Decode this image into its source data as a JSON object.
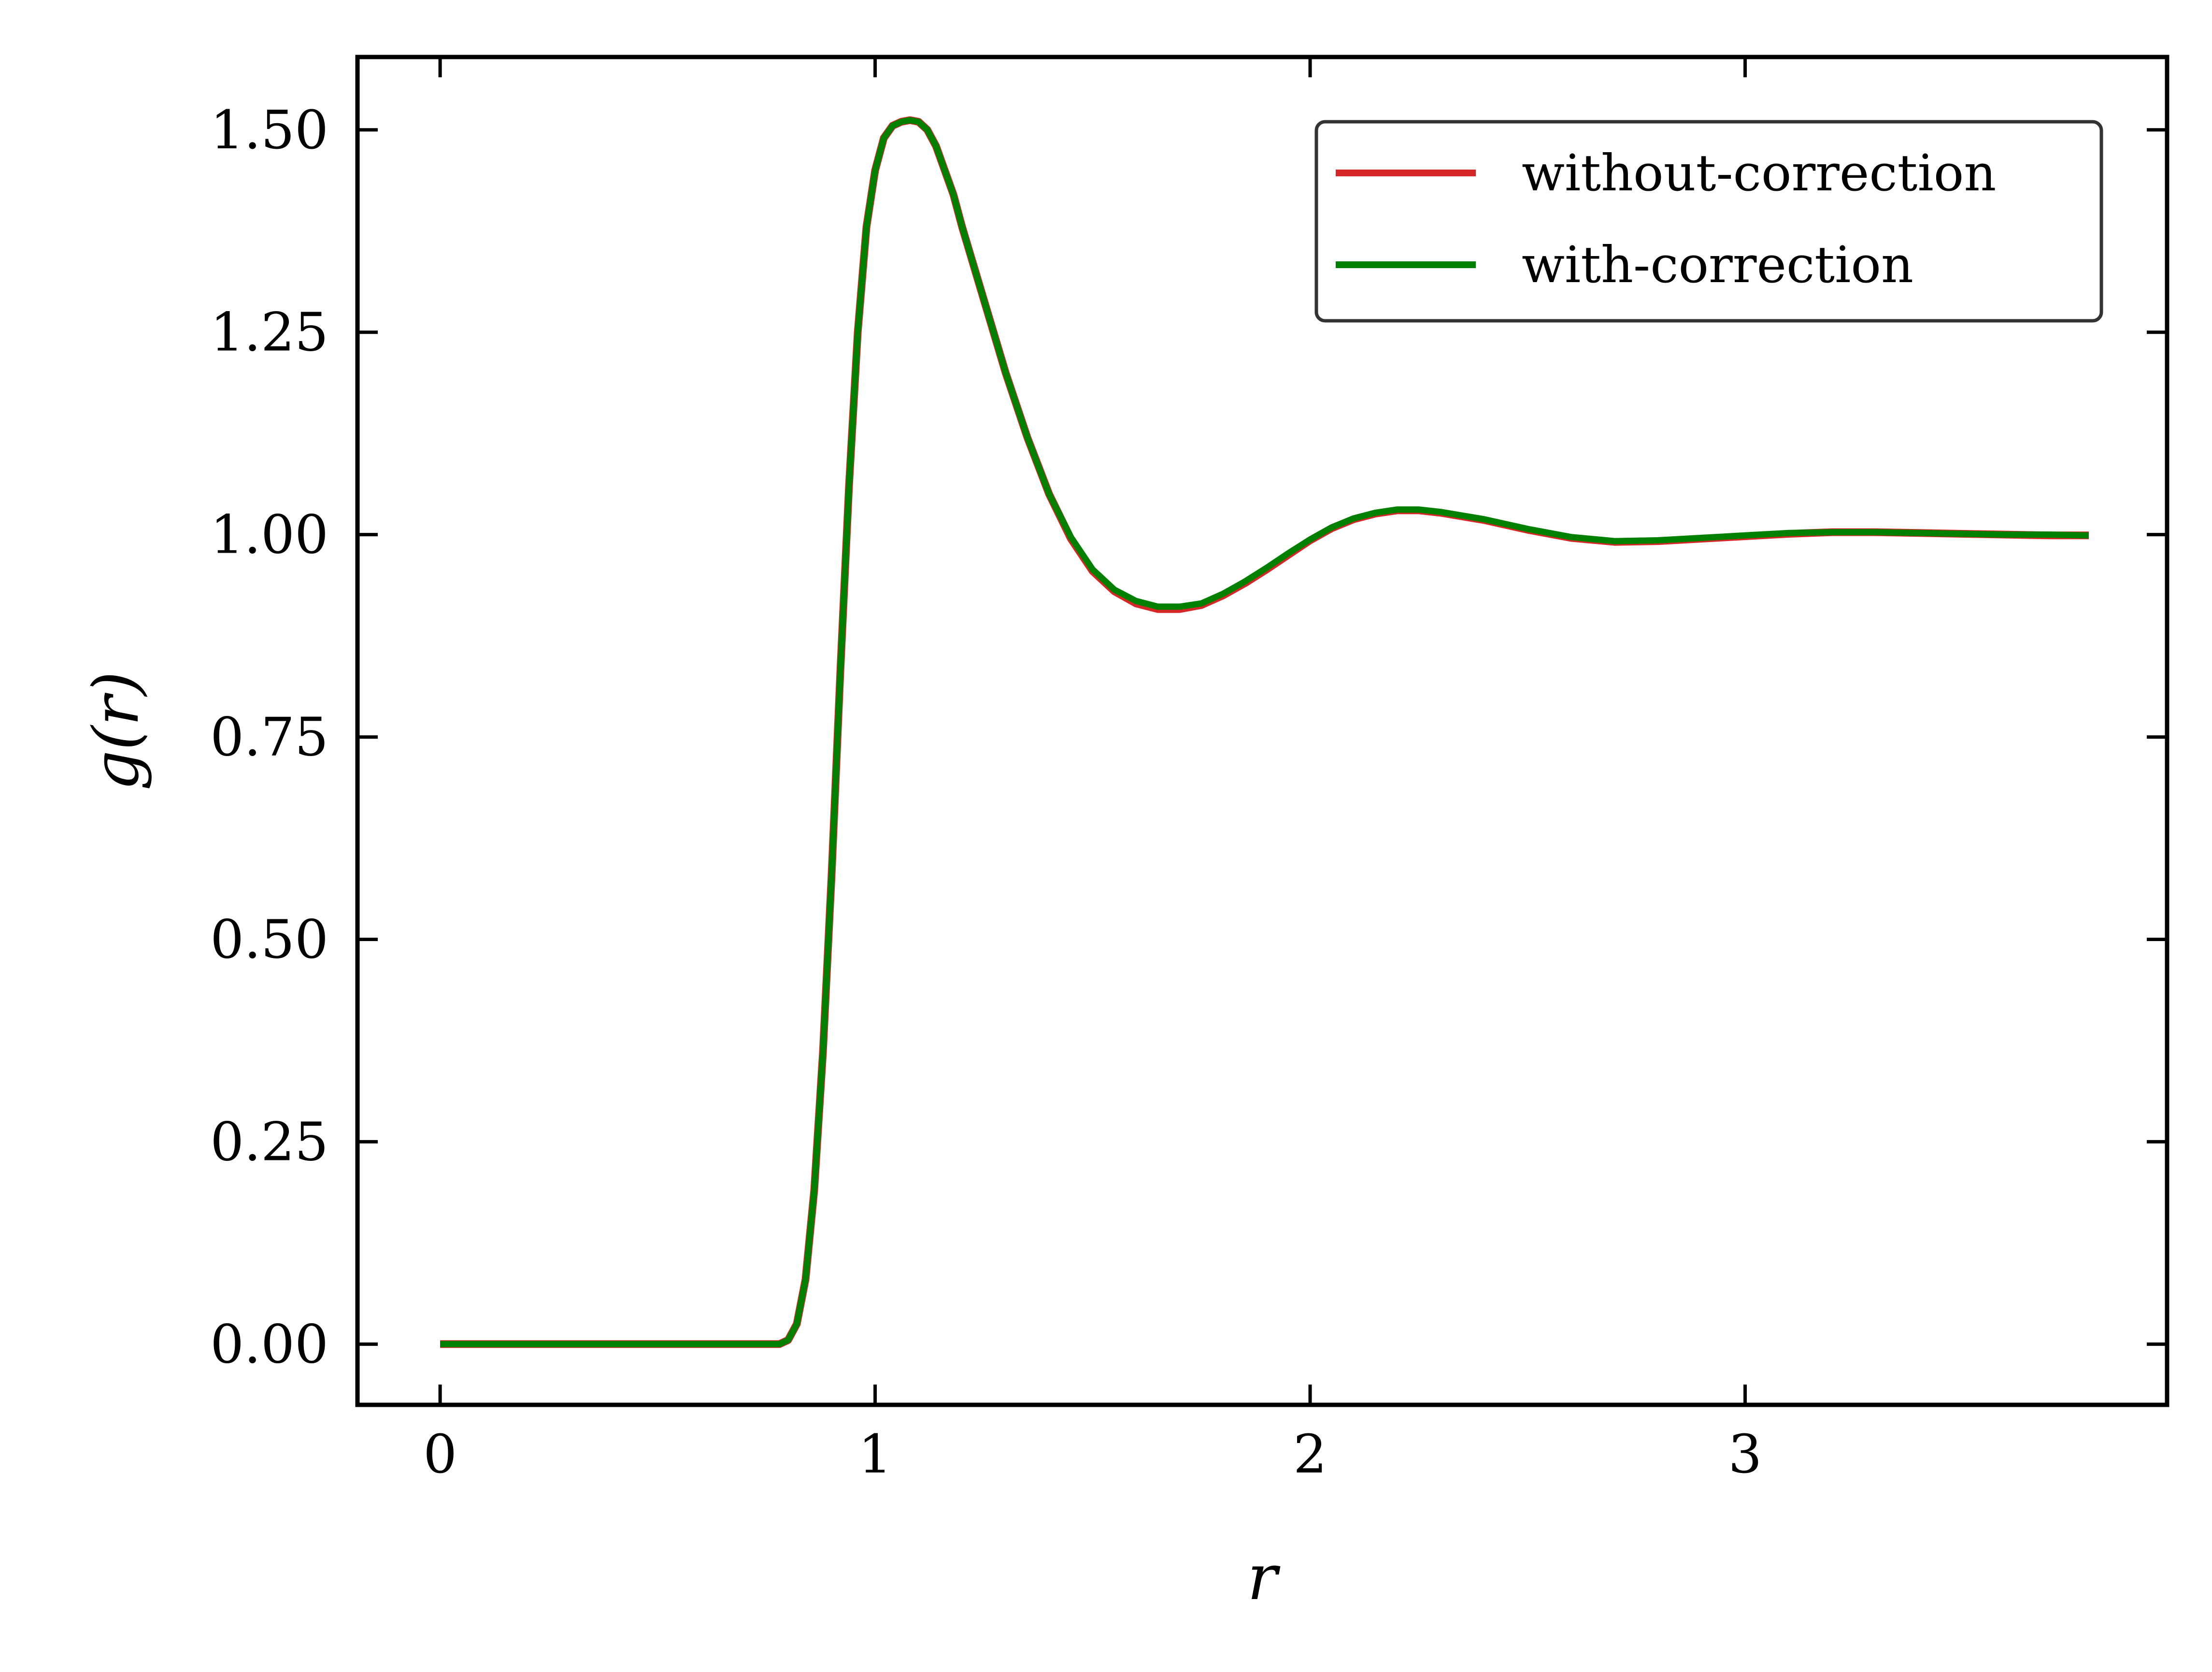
{
  "chart_data": {
    "type": "line",
    "xlabel": "r",
    "ylabel": "g(r)",
    "xlim": [
      -0.19,
      3.97
    ],
    "ylim": [
      -0.075,
      1.59
    ],
    "xticks": [
      0,
      1,
      2,
      3
    ],
    "xtick_labels": [
      "0",
      "1",
      "2",
      "3"
    ],
    "yticks": [
      0.0,
      0.25,
      0.5,
      0.75,
      1.0,
      1.25,
      1.5
    ],
    "ytick_labels": [
      "0.00",
      "0.25",
      "0.50",
      "0.75",
      "1.00",
      "1.25",
      "1.50"
    ],
    "grid": false,
    "legend_position": "top-right",
    "x": [
      0.0,
      0.1,
      0.2,
      0.3,
      0.4,
      0.5,
      0.6,
      0.7,
      0.75,
      0.78,
      0.8,
      0.82,
      0.84,
      0.86,
      0.88,
      0.9,
      0.92,
      0.94,
      0.96,
      0.98,
      1.0,
      1.02,
      1.04,
      1.06,
      1.08,
      1.1,
      1.12,
      1.14,
      1.16,
      1.18,
      1.2,
      1.25,
      1.3,
      1.35,
      1.4,
      1.45,
      1.5,
      1.55,
      1.6,
      1.65,
      1.7,
      1.75,
      1.8,
      1.85,
      1.9,
      1.95,
      2.0,
      2.05,
      2.1,
      2.15,
      2.2,
      2.25,
      2.3,
      2.4,
      2.5,
      2.6,
      2.7,
      2.8,
      2.9,
      3.0,
      3.1,
      3.2,
      3.3,
      3.4,
      3.5,
      3.6,
      3.7,
      3.79
    ],
    "series": [
      {
        "name": "without-correction",
        "color": "#d62728",
        "values": [
          0.0,
          0.0,
          0.0,
          0.0,
          0.0,
          0.0,
          0.0,
          0.0,
          0.0,
          0.0,
          0.005,
          0.025,
          0.08,
          0.19,
          0.36,
          0.58,
          0.83,
          1.06,
          1.25,
          1.38,
          1.45,
          1.49,
          1.505,
          1.51,
          1.512,
          1.51,
          1.5,
          1.48,
          1.45,
          1.42,
          1.38,
          1.29,
          1.2,
          1.12,
          1.05,
          0.995,
          0.955,
          0.93,
          0.915,
          0.908,
          0.908,
          0.913,
          0.925,
          0.94,
          0.957,
          0.975,
          0.993,
          1.008,
          1.019,
          1.026,
          1.03,
          1.03,
          1.027,
          1.018,
          1.006,
          0.996,
          0.991,
          0.992,
          0.995,
          0.998,
          1.001,
          1.003,
          1.003,
          1.002,
          1.001,
          1.0,
          0.999,
          0.999
        ]
      },
      {
        "name": "with-correction",
        "color": "#008000",
        "values": [
          0.0,
          0.0,
          0.0,
          0.0,
          0.0,
          0.0,
          0.0,
          0.0,
          0.0,
          0.0,
          0.005,
          0.025,
          0.08,
          0.19,
          0.36,
          0.58,
          0.83,
          1.06,
          1.25,
          1.38,
          1.45,
          1.49,
          1.505,
          1.51,
          1.512,
          1.51,
          1.5,
          1.48,
          1.45,
          1.42,
          1.38,
          1.29,
          1.2,
          1.12,
          1.05,
          0.997,
          0.957,
          0.932,
          0.918,
          0.911,
          0.911,
          0.915,
          0.927,
          0.942,
          0.959,
          0.977,
          0.994,
          1.009,
          1.02,
          1.027,
          1.031,
          1.031,
          1.028,
          1.019,
          1.007,
          0.997,
          0.992,
          0.993,
          0.996,
          0.999,
          1.002,
          1.003,
          1.003,
          1.002,
          1.001,
          1.0,
          1.0,
          0.999
        ]
      }
    ]
  }
}
